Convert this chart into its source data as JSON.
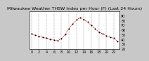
{
  "title": "Milwaukee Weather THSW Index per Hour (F) (Last 24 Hours)",
  "x": [
    0,
    1,
    2,
    3,
    4,
    5,
    6,
    7,
    8,
    9,
    10,
    11,
    12,
    13,
    14,
    15,
    16,
    17,
    18,
    19,
    20,
    21,
    22,
    23
  ],
  "y": [
    52,
    49,
    47,
    45,
    43,
    41,
    39,
    38,
    42,
    51,
    63,
    73,
    82,
    86,
    82,
    77,
    70,
    63,
    56,
    52,
    48,
    45,
    43,
    36
  ],
  "line_color": "#cc0000",
  "marker_color": "#000000",
  "background_color": "#c8c8c8",
  "plot_bg_color": "#ffffff",
  "grid_color": "#808080",
  "title_fontsize": 4.5,
  "tick_fontsize": 3.5,
  "ylim": [
    20,
    100
  ],
  "yticks": [
    20,
    30,
    40,
    50,
    60,
    70,
    80,
    90
  ],
  "ytick_labels": [
    "20",
    "30",
    "40",
    "50",
    "60",
    "70",
    "80",
    "90"
  ],
  "xtick_step": 2
}
